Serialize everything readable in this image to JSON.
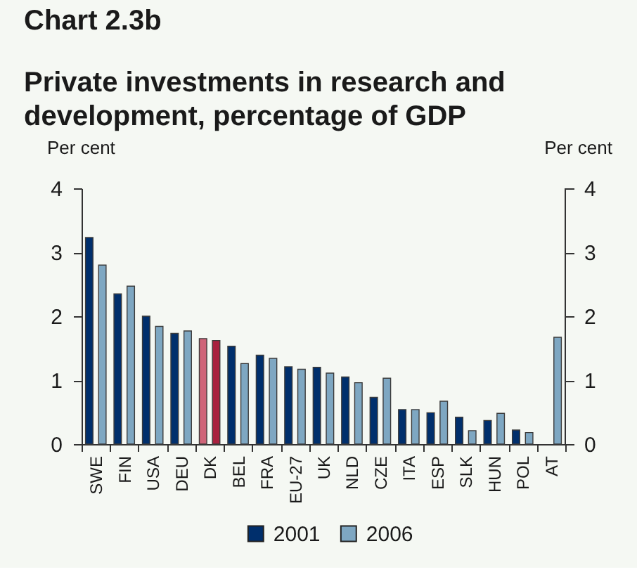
{
  "chart_data": {
    "type": "bar",
    "title": "Chart 2.3b",
    "subtitle": "Private investments in research and development, percentage of GDP",
    "ylabel": "Per cent",
    "y2label": "Per cent",
    "categories": [
      "SWE",
      "FIN",
      "USA",
      "DEU",
      "DK",
      "BEL",
      "FRA",
      "EU-27",
      "UK",
      "NLD",
      "CZE",
      "ITA",
      "ESP",
      "SLK",
      "HUN",
      "POL",
      "AT"
    ],
    "series": [
      {
        "name": "2001",
        "color": "#002f6c",
        "colors": [
          "#002f6c",
          "#002f6c",
          "#002f6c",
          "#002f6c",
          "#cf6478",
          "#002f6c",
          "#002f6c",
          "#002f6c",
          "#002f6c",
          "#002f6c",
          "#002f6c",
          "#002f6c",
          "#002f6c",
          "#002f6c",
          "#002f6c",
          "#002f6c",
          "#002f6c"
        ],
        "values": [
          3.23,
          2.35,
          2.0,
          1.73,
          1.65,
          1.53,
          1.39,
          1.21,
          1.2,
          1.05,
          0.73,
          0.54,
          0.49,
          0.42,
          0.37,
          0.22,
          null
        ]
      },
      {
        "name": "2006",
        "color": "#7ea7c2",
        "colors": [
          "#7ea7c2",
          "#7ea7c2",
          "#7ea7c2",
          "#7ea7c2",
          "#a8213f",
          "#7ea7c2",
          "#7ea7c2",
          "#7ea7c2",
          "#7ea7c2",
          "#7ea7c2",
          "#7ea7c2",
          "#7ea7c2",
          "#7ea7c2",
          "#7ea7c2",
          "#7ea7c2",
          "#7ea7c2",
          "#7ea7c2"
        ],
        "values": [
          2.8,
          2.47,
          1.84,
          1.77,
          1.62,
          1.26,
          1.34,
          1.17,
          1.11,
          0.96,
          1.03,
          0.54,
          0.67,
          0.21,
          0.48,
          0.18,
          1.67
        ]
      }
    ],
    "ylim": [
      0,
      4
    ],
    "yticks": [
      0,
      1,
      2,
      3,
      4
    ],
    "y2lim": [
      0,
      4
    ],
    "y2ticks": [
      0,
      1,
      2,
      3,
      4
    ],
    "grid": false,
    "legend": "bottom"
  }
}
